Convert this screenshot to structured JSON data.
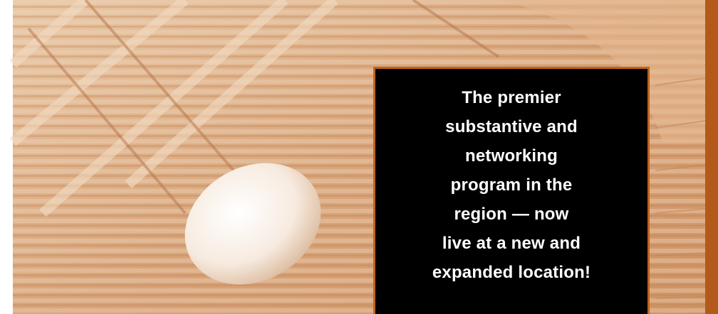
{
  "callout": {
    "lines": [
      "The premier",
      "substantive and",
      "networking",
      "program in the",
      "region — now",
      "live at a new and",
      "expanded location!"
    ]
  }
}
